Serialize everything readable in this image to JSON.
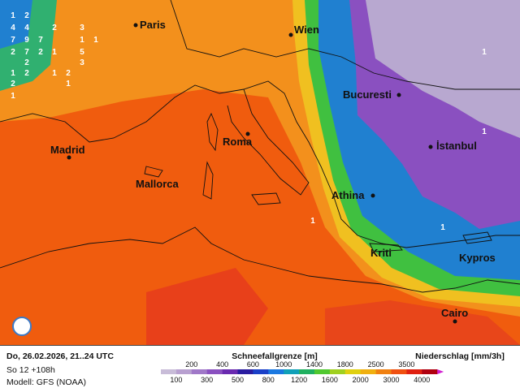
{
  "cities": [
    {
      "name": "Paris"
    },
    {
      "name": "Wien"
    },
    {
      "name": "Madrid"
    },
    {
      "name": "Mallorca"
    },
    {
      "name": "Roma"
    },
    {
      "name": "Bucuresti"
    },
    {
      "name": "İstanbul"
    },
    {
      "name": "Athina"
    },
    {
      "name": "Kriti"
    },
    {
      "name": "Kypros"
    },
    {
      "name": "Cairo"
    }
  ],
  "map_numbers": [
    "1",
    "2",
    "4",
    "4",
    "2",
    "3",
    "7",
    "9",
    "7",
    "1",
    "1",
    "2",
    "7",
    "2",
    "1",
    "5",
    "2",
    "3",
    "1",
    "2",
    "1",
    "2",
    "2",
    "1",
    "1",
    "1",
    "1",
    "1",
    "1"
  ],
  "footer": {
    "date": "Do, 26.02.2026, 21..24 UTC",
    "run": "So 12 +108h",
    "model": "Modell: GFS (NOAA)"
  },
  "legend": {
    "title": "Schneefallgrenze [m]",
    "labels": [
      100,
      200,
      300,
      400,
      500,
      600,
      800,
      1000,
      1200,
      1400,
      1600,
      1800,
      2000,
      2500,
      3000,
      3500,
      4000
    ],
    "colors": [
      "#c8bcd8",
      "#b8a0d0",
      "#a078c8",
      "#8a50c0",
      "#6a2ab0",
      "#2a1ca0",
      "#1a40c8",
      "#1a78e0",
      "#10a0b8",
      "#20b060",
      "#50c830",
      "#a0d020",
      "#e0d010",
      "#f0b010",
      "#f08010",
      "#f05010",
      "#e02010",
      "#b00010"
    ],
    "end_color": "#d020d0"
  },
  "precip_title": "Niederschlag [mm/3h]"
}
